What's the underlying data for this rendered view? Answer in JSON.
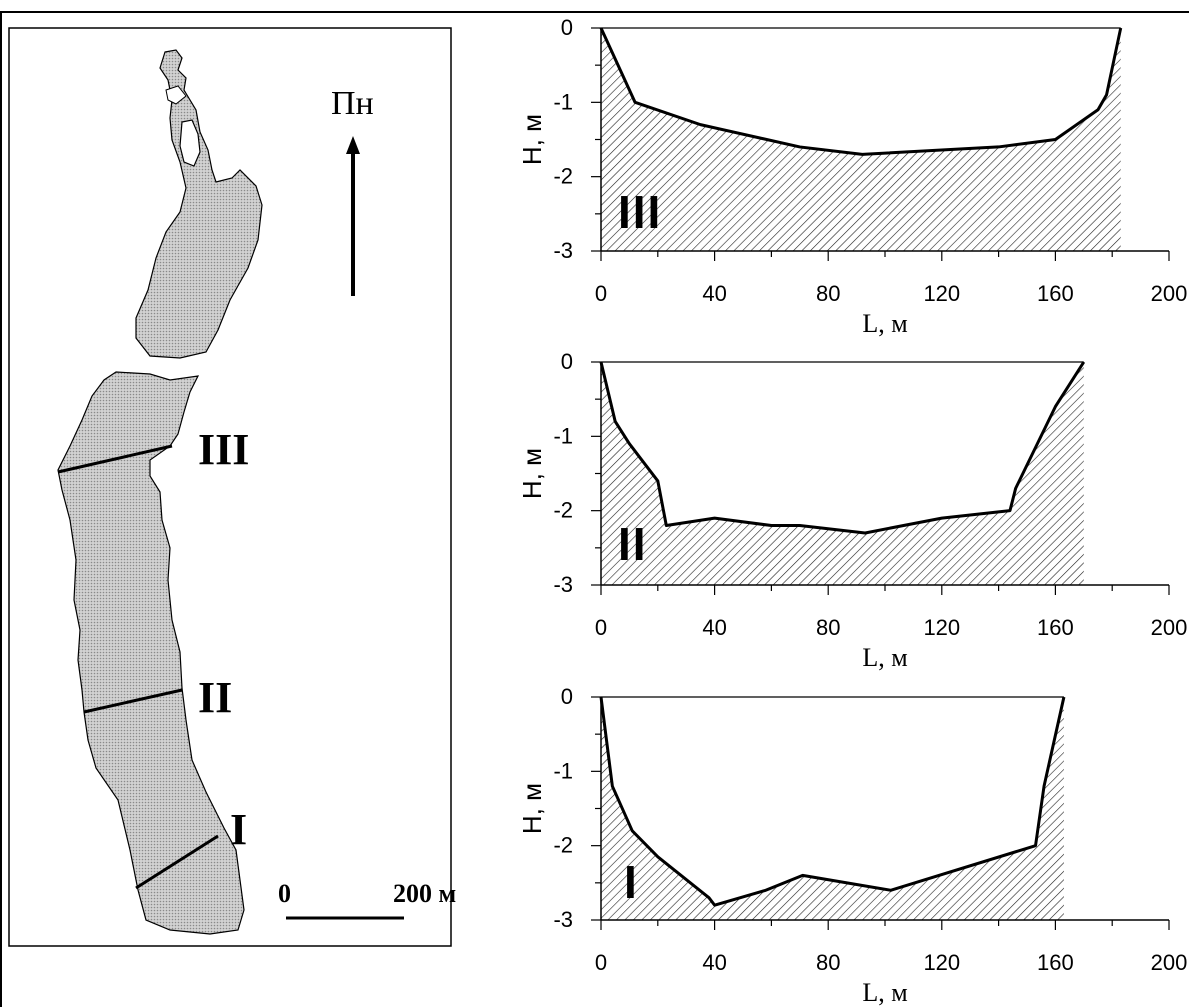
{
  "map": {
    "north_label": "Пн",
    "scale_start": "0",
    "scale_end": "200 м",
    "sections": [
      "III",
      "II",
      "I"
    ]
  },
  "colors": {
    "axis": "#000000",
    "hatch": "#222222",
    "lake_fill": "#bdbdbd",
    "background": "#ffffff"
  },
  "chart_data": [
    {
      "type": "area",
      "section_label": "III",
      "xlabel": "L, м",
      "ylabel": "H, м",
      "xlim": [
        0,
        200
      ],
      "ylim": [
        -3,
        0
      ],
      "x_ticks": [
        0,
        40,
        80,
        120,
        160,
        200
      ],
      "y_ticks": [
        0,
        -1,
        -2,
        -3
      ],
      "fill": "hatched",
      "x": [
        0,
        12,
        35,
        70,
        92,
        140,
        160,
        175,
        178,
        183
      ],
      "y": [
        0,
        -1.0,
        -1.3,
        -1.6,
        -1.7,
        -1.6,
        -1.5,
        -1.1,
        -0.9,
        0
      ]
    },
    {
      "type": "area",
      "section_label": "II",
      "xlabel": "L, м",
      "ylabel": "H, м",
      "xlim": [
        0,
        200
      ],
      "ylim": [
        -3,
        0
      ],
      "x_ticks": [
        0,
        40,
        80,
        120,
        160,
        200
      ],
      "y_ticks": [
        0,
        -1,
        -2,
        -3
      ],
      "fill": "hatched",
      "x": [
        0,
        5,
        10,
        20,
        23,
        40,
        60,
        70,
        93,
        120,
        144,
        146,
        160,
        170
      ],
      "y": [
        0,
        -0.8,
        -1.1,
        -1.6,
        -2.2,
        -2.1,
        -2.2,
        -2.2,
        -2.3,
        -2.1,
        -2.0,
        -1.7,
        -0.6,
        0
      ]
    },
    {
      "type": "area",
      "section_label": "I",
      "xlabel": "L, м",
      "ylabel": "H, м",
      "xlim": [
        0,
        200
      ],
      "ylim": [
        -3,
        0
      ],
      "x_ticks": [
        0,
        40,
        80,
        120,
        160,
        200
      ],
      "y_ticks": [
        0,
        -1,
        -2,
        -3
      ],
      "fill": "hatched",
      "x": [
        0,
        4,
        11,
        20,
        38,
        40,
        58,
        71,
        102,
        153,
        156,
        163
      ],
      "y": [
        0,
        -1.2,
        -1.8,
        -2.15,
        -2.7,
        -2.8,
        -2.6,
        -2.4,
        -2.6,
        -2.0,
        -1.2,
        0
      ]
    }
  ]
}
